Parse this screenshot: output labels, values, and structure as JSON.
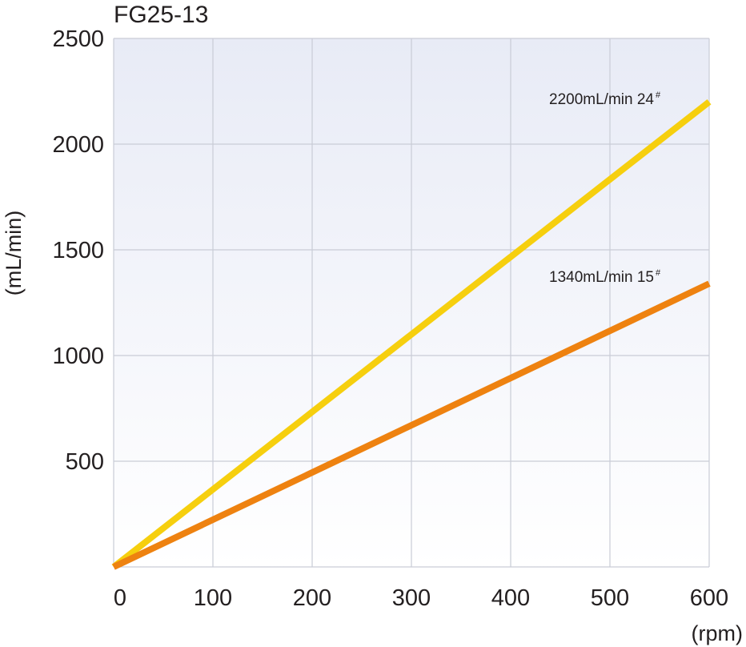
{
  "chart_data": {
    "type": "line",
    "title": "FG25-13",
    "xlabel": "(rpm)",
    "ylabel": "(mL/min)",
    "x_ticks": [
      "0",
      "100",
      "200",
      "300",
      "400",
      "500",
      "600"
    ],
    "y_ticks": [
      "500",
      "1000",
      "1500",
      "2000",
      "2500"
    ],
    "xlim": [
      0,
      600
    ],
    "ylim": [
      0,
      2500
    ],
    "grid": true,
    "series": [
      {
        "name": "2200mL/min 24",
        "label_main": "2200mL/min 24",
        "label_sup": "#",
        "color": "#f6cf0e",
        "x": [
          0,
          600
        ],
        "y": [
          0,
          2200
        ]
      },
      {
        "name": "1340mL/min 15",
        "label_main": "1340mL/min 15",
        "label_sup": "#",
        "color": "#ee8210",
        "x": [
          0,
          600
        ],
        "y": [
          0,
          1340
        ]
      }
    ],
    "colors": {
      "plot_bg_top": "#e8ebf6",
      "plot_bg_bottom": "#ffffff",
      "grid": "#c9ccd6"
    }
  }
}
